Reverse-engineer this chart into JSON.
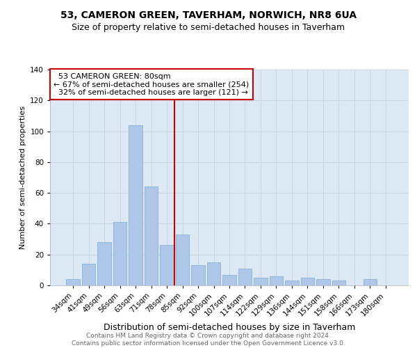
{
  "title": "53, CAMERON GREEN, TAVERHAM, NORWICH, NR8 6UA",
  "subtitle": "Size of property relative to semi-detached houses in Taverham",
  "xlabel": "Distribution of semi-detached houses by size in Taverham",
  "ylabel": "Number of semi-detached properties",
  "categories": [
    "34sqm",
    "41sqm",
    "49sqm",
    "56sqm",
    "63sqm",
    "71sqm",
    "78sqm",
    "85sqm",
    "92sqm",
    "100sqm",
    "107sqm",
    "114sqm",
    "122sqm",
    "129sqm",
    "136sqm",
    "144sqm",
    "151sqm",
    "158sqm",
    "166sqm",
    "173sqm",
    "180sqm"
  ],
  "values": [
    4,
    14,
    28,
    41,
    104,
    64,
    26,
    33,
    13,
    15,
    7,
    11,
    5,
    6,
    3,
    5,
    4,
    3,
    0,
    4,
    0
  ],
  "bar_color": "#aec6e8",
  "bar_edge_color": "#7aaad0",
  "property_label": "53 CAMERON GREEN: 80sqm",
  "pct_smaller": 67,
  "count_smaller": 254,
  "pct_larger": 32,
  "count_larger": 121,
  "vline_x_index": 6.5,
  "annotation_box_color": "#cc0000",
  "ylim": [
    0,
    140
  ],
  "yticks": [
    0,
    20,
    40,
    60,
    80,
    100,
    120,
    140
  ],
  "grid_color": "#c8d4e0",
  "bg_color": "#dce8f4",
  "footer_line1": "Contains HM Land Registry data © Crown copyright and database right 2024.",
  "footer_line2": "Contains public sector information licensed under the Open Government Licence v3.0.",
  "title_fontsize": 10,
  "subtitle_fontsize": 9,
  "xlabel_fontsize": 9,
  "ylabel_fontsize": 8,
  "tick_fontsize": 7.5,
  "annot_fontsize": 8,
  "footer_fontsize": 6.5
}
